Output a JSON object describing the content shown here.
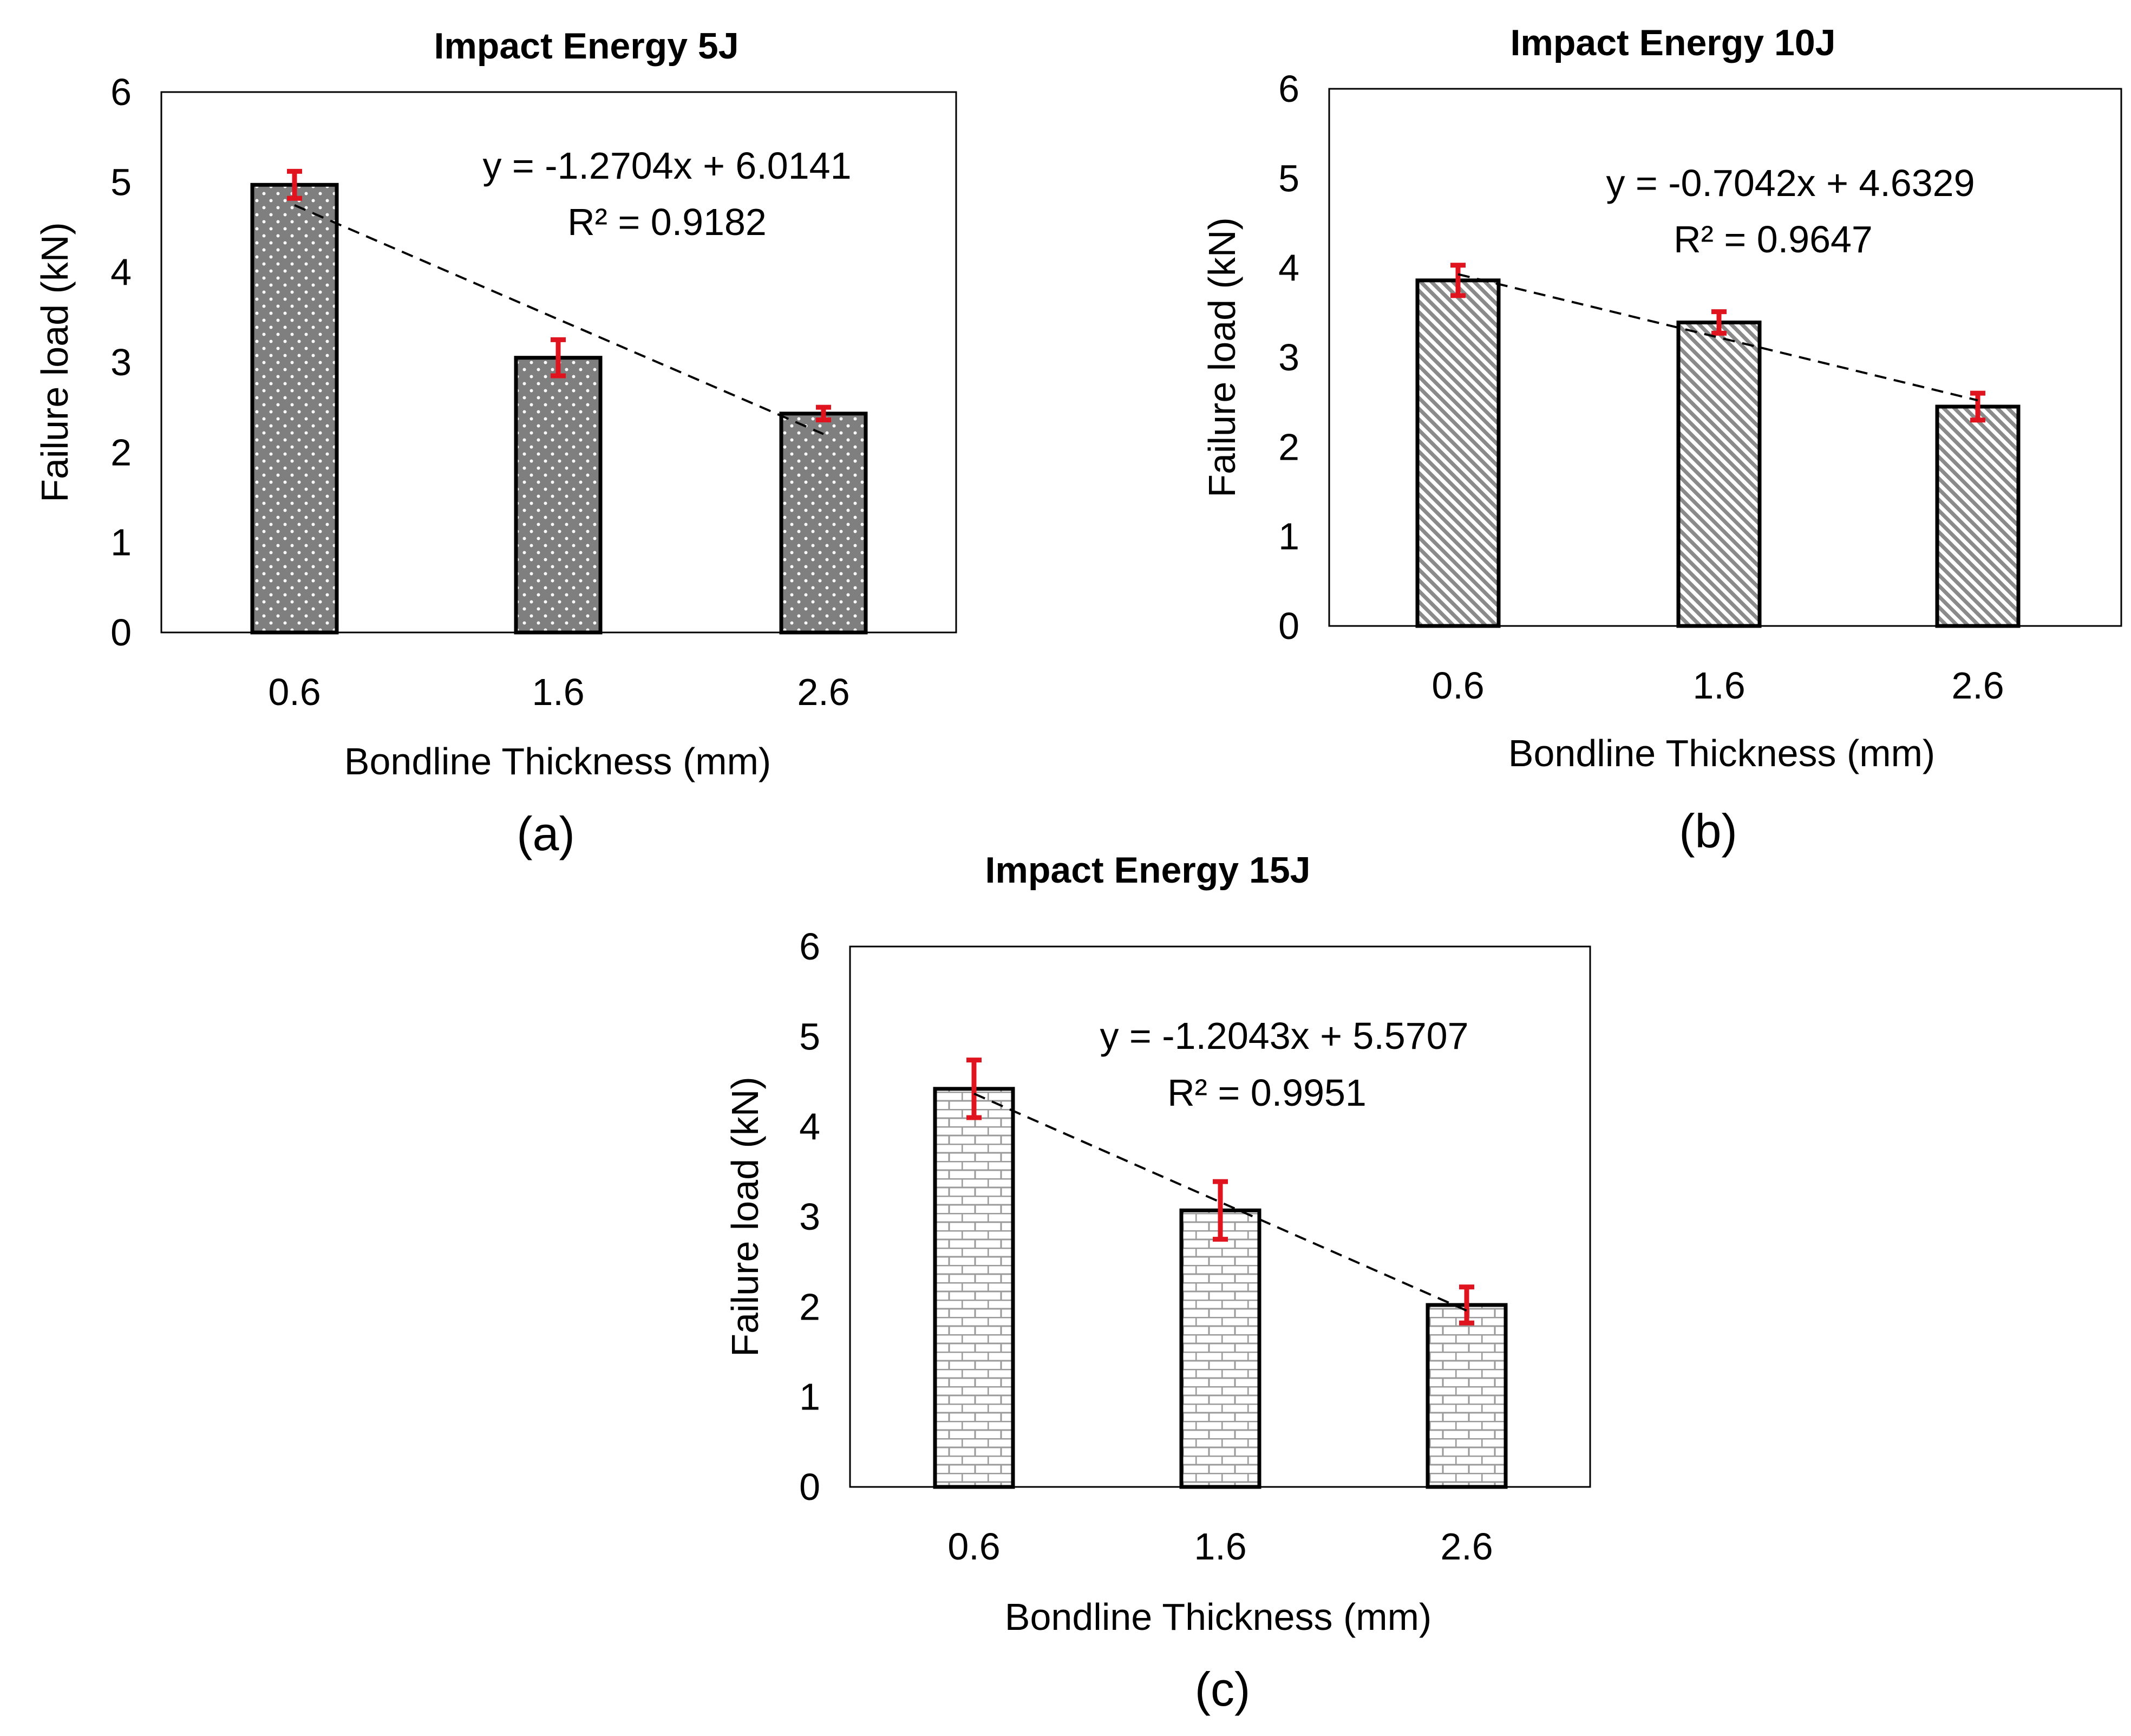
{
  "chart_data": [
    {
      "type": "bar",
      "panel_label": "(a)",
      "title": "Impact Energy 5J",
      "xlabel": "Bondline Thickness (mm)",
      "ylabel": "Failure load (kN)",
      "ylim": [
        0,
        6
      ],
      "yticks": [
        "0",
        "1",
        "2",
        "3",
        "4",
        "5",
        "6"
      ],
      "categories": [
        "0.6",
        "1.6",
        "2.6"
      ],
      "values": [
        4.97,
        3.05,
        2.43
      ],
      "error": [
        0.15,
        0.2,
        0.07
      ],
      "fill_pattern": "dots",
      "bar_color": "#7f7f7f",
      "error_color": "#e0141e",
      "trendline": {
        "slope": -1.2704,
        "intercept": 6.0141,
        "equation": "y = -1.2704x + 6.0141",
        "r2": "R² = 0.9182"
      }
    },
    {
      "type": "bar",
      "panel_label": "(b)",
      "title": "Impact Energy 10J",
      "xlabel": "Bondline Thickness (mm)",
      "ylabel": "Failure load (kN)",
      "ylim": [
        0,
        6
      ],
      "yticks": [
        "0",
        "1",
        "2",
        "3",
        "4",
        "5",
        "6"
      ],
      "categories": [
        "0.6",
        "1.6",
        "2.6"
      ],
      "values": [
        3.86,
        3.39,
        2.45
      ],
      "error": [
        0.17,
        0.12,
        0.15
      ],
      "fill_pattern": "diagonal",
      "bar_color": "#8a8a8a",
      "error_color": "#e0141e",
      "trendline": {
        "slope": -0.7042,
        "intercept": 4.6329,
        "equation": "y = -0.7042x + 4.6329",
        "r2": "R² = 0.9647"
      }
    },
    {
      "type": "bar",
      "panel_label": "(c)",
      "title": "Impact Energy 15J",
      "xlabel": "Bondline Thickness (mm)",
      "ylabel": "Failure load (kN)",
      "ylim": [
        0,
        6
      ],
      "yticks": [
        "0",
        "1",
        "2",
        "3",
        "4",
        "5",
        "6"
      ],
      "categories": [
        "0.6",
        "1.6",
        "2.6"
      ],
      "values": [
        4.42,
        3.07,
        2.02
      ],
      "error": [
        0.32,
        0.32,
        0.2
      ],
      "fill_pattern": "bricks",
      "bar_color": "#9a9a9a",
      "error_color": "#e0141e",
      "trendline": {
        "slope": -1.2043,
        "intercept": 5.5707,
        "equation": "y = -1.2043x + 5.5707",
        "r2": "R² = 0.9951"
      }
    }
  ]
}
